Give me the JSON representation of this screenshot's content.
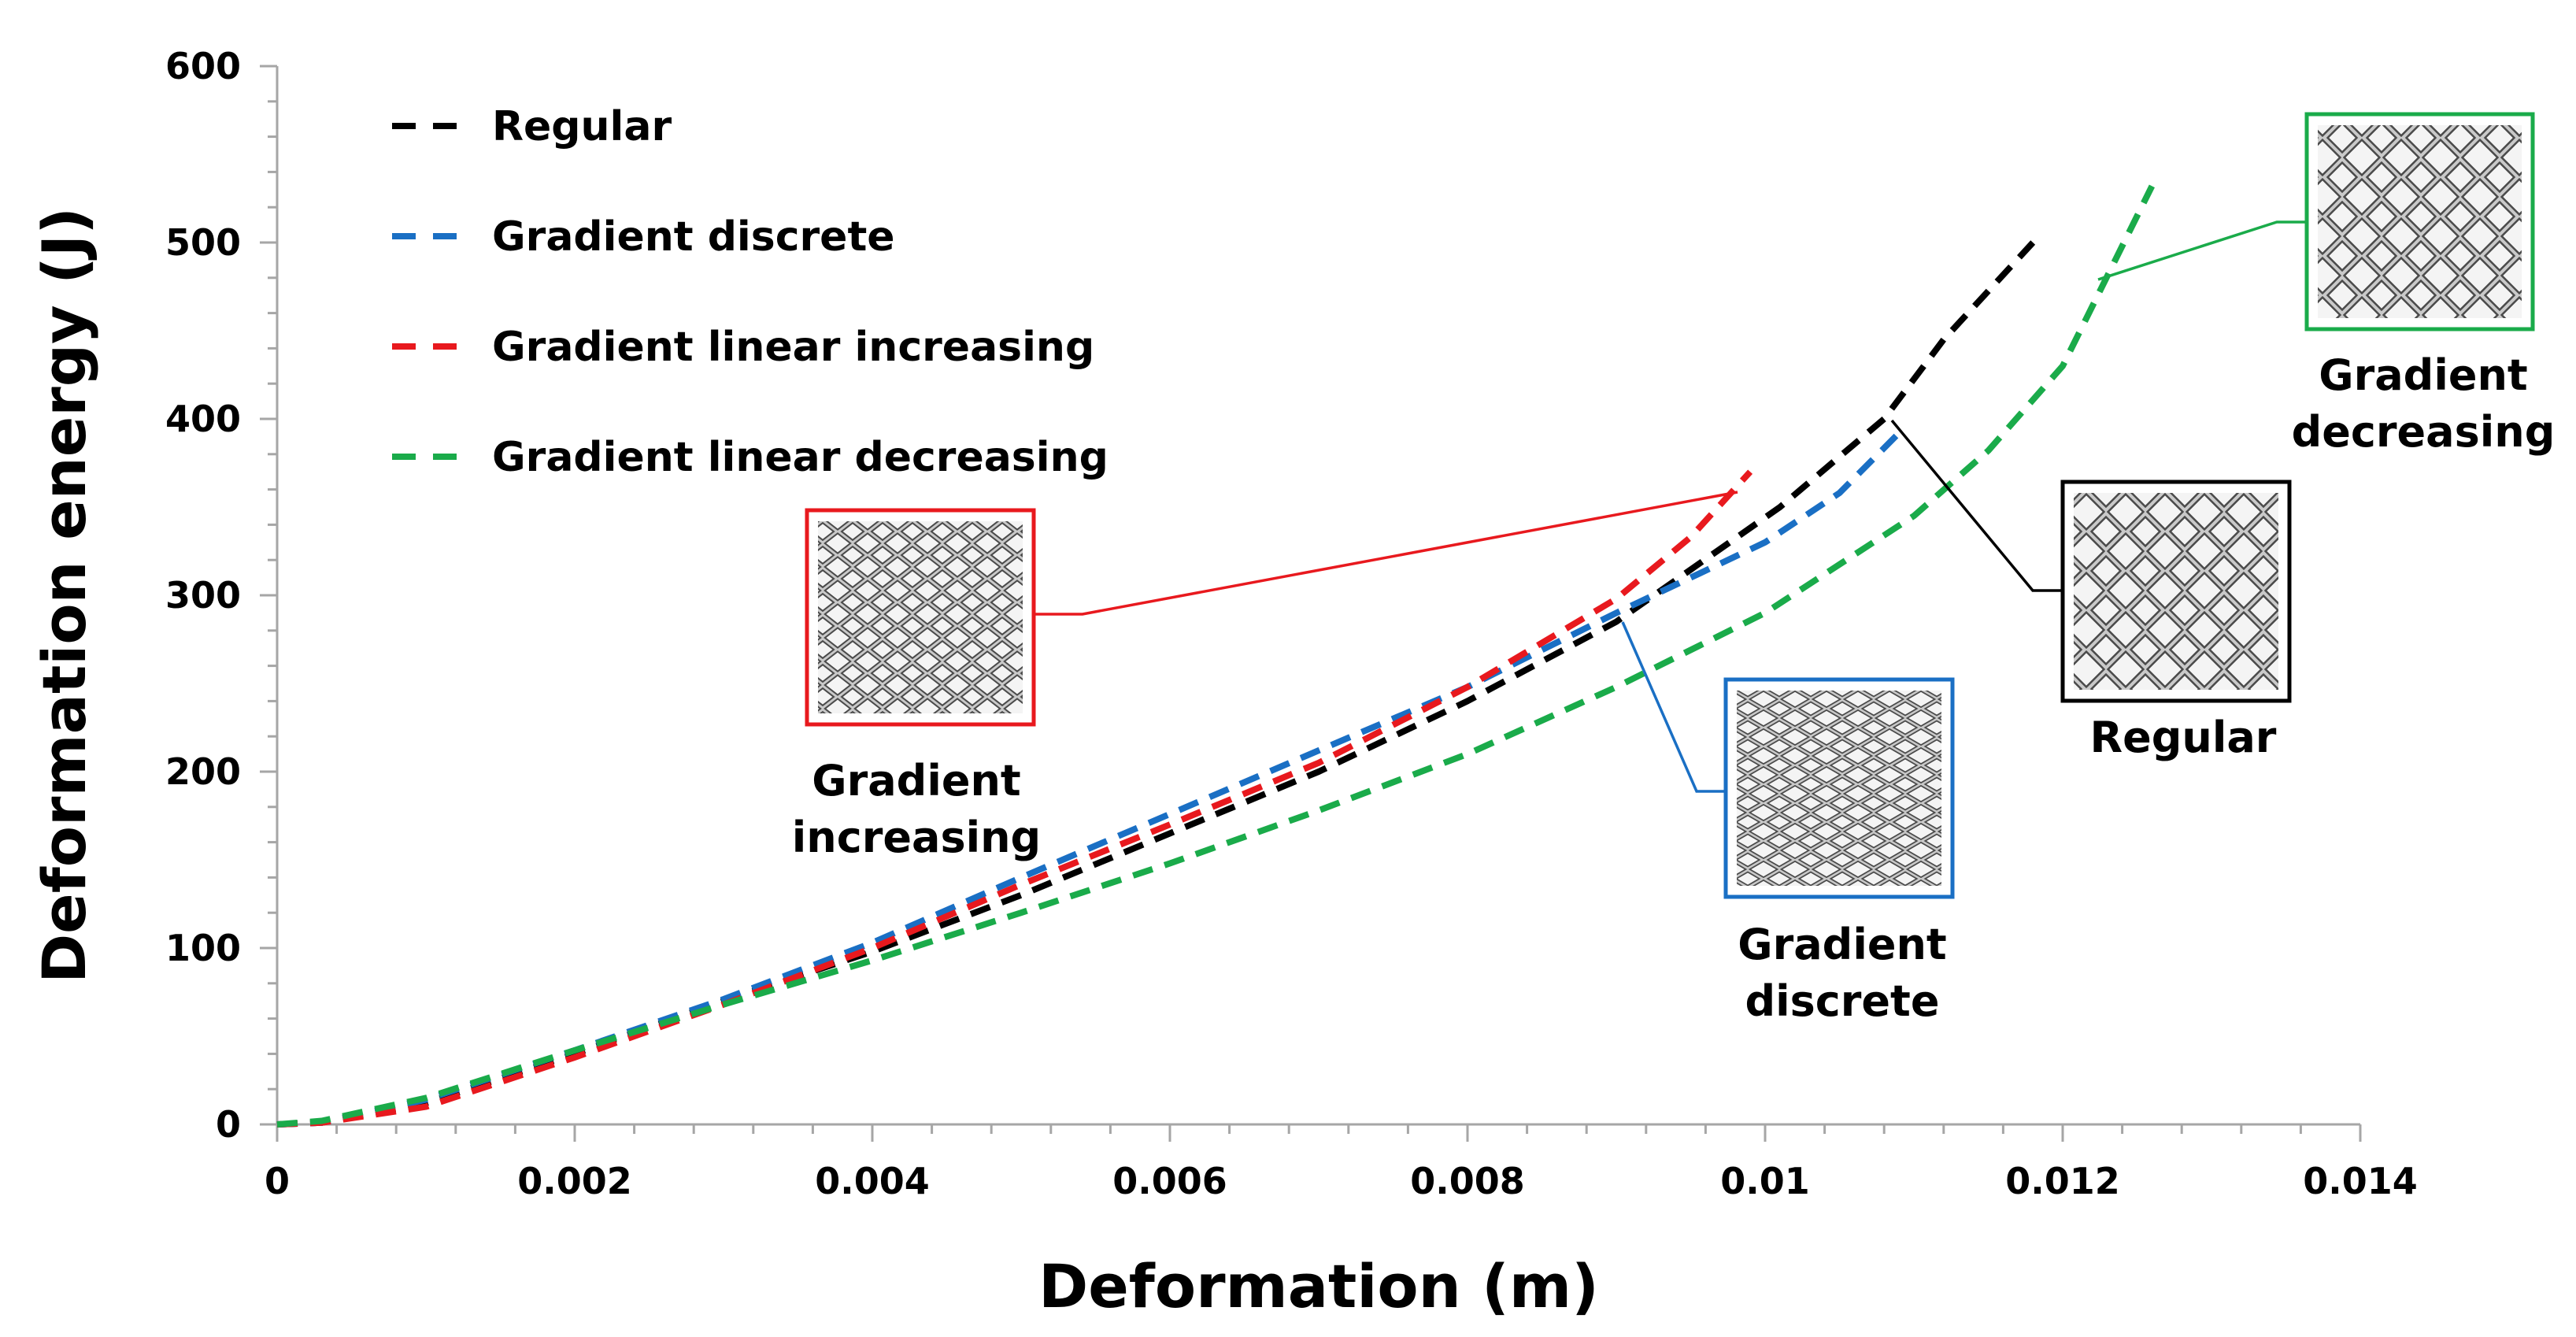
{
  "chart_data": {
    "type": "line",
    "xlabel": "Deformation (m)",
    "ylabel": "Deformation energy (J)",
    "xlim": [
      0,
      0.014
    ],
    "ylim": [
      0,
      600
    ],
    "x_ticks": [
      0,
      0.002,
      0.004,
      0.006,
      0.008,
      0.01,
      0.012,
      0.014
    ],
    "x_tick_labels": [
      "0",
      "0.002",
      "0.004",
      "0.006",
      "0.008",
      "0.01",
      "0.012",
      "0.014"
    ],
    "y_ticks": [
      0,
      100,
      200,
      300,
      400,
      500,
      600
    ],
    "y_tick_labels": [
      "0",
      "100",
      "200",
      "300",
      "400",
      "500",
      "600"
    ],
    "grid": false,
    "legend_position": "top-left",
    "series": [
      {
        "name": "Regular",
        "color": "#000000",
        "x": [
          0,
          0.0003,
          0.001,
          0.002,
          0.003,
          0.004,
          0.005,
          0.006,
          0.007,
          0.008,
          0.009,
          0.0101,
          0.0108,
          0.0112,
          0.0118
        ],
        "y": [
          0,
          1,
          12,
          40,
          70,
          98,
          130,
          165,
          200,
          240,
          285,
          350,
          400,
          445,
          500
        ]
      },
      {
        "name": "Gradient discrete",
        "color": "#1a6fc4",
        "x": [
          0,
          0.0003,
          0.001,
          0.002,
          0.003,
          0.004,
          0.005,
          0.006,
          0.007,
          0.008,
          0.009,
          0.01,
          0.0105,
          0.0109
        ],
        "y": [
          0,
          1,
          14,
          42,
          71,
          103,
          140,
          176,
          212,
          248,
          290,
          330,
          358,
          392
        ]
      },
      {
        "name": "Gradient linear increasing",
        "color": "#e8191e",
        "x": [
          0,
          0.0003,
          0.001,
          0.002,
          0.003,
          0.004,
          0.005,
          0.006,
          0.007,
          0.008,
          0.009,
          0.0095,
          0.0099
        ],
        "y": [
          0,
          1,
          10,
          38,
          68,
          100,
          136,
          170,
          205,
          248,
          298,
          333,
          370
        ]
      },
      {
        "name": "Gradient linear decreasing",
        "color": "#1aab4a",
        "x": [
          0,
          0.0003,
          0.001,
          0.002,
          0.003,
          0.004,
          0.005,
          0.006,
          0.007,
          0.008,
          0.009,
          0.01,
          0.011,
          0.0115,
          0.012,
          0.0126
        ],
        "y": [
          0,
          2,
          15,
          42,
          68,
          93,
          120,
          148,
          178,
          210,
          248,
          290,
          345,
          382,
          430,
          532
        ]
      }
    ],
    "annotations": [
      {
        "id": "increasing",
        "lines": [
          "Gradient",
          "increasing"
        ],
        "color": "#e8191e"
      },
      {
        "id": "discrete",
        "lines": [
          "Gradient",
          "discrete"
        ],
        "color": "#1a6fc4"
      },
      {
        "id": "regular",
        "lines": [
          "Regular"
        ],
        "color": "#000000"
      },
      {
        "id": "decreasing",
        "lines": [
          "Gradient",
          "decreasing"
        ],
        "color": "#1aab4a"
      }
    ]
  }
}
